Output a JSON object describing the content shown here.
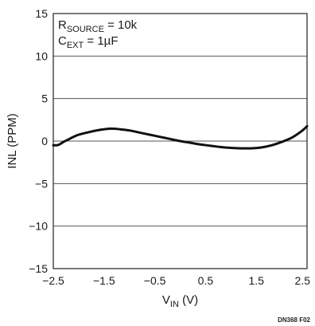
{
  "chart_data": {
    "type": "line",
    "title": "",
    "xlabel": {
      "main": "V",
      "sub": "IN",
      "unit": " (V)"
    },
    "ylabel": "INL (PPM)",
    "xlim": [
      -2.5,
      2.5
    ],
    "ylim": [
      -15,
      15
    ],
    "x_ticks": [
      -2.5,
      -1.5,
      -0.5,
      0.5,
      1.5,
      2.5
    ],
    "x_tick_labels": [
      "−2.5",
      "−1.5",
      "−0.5",
      "0.5",
      "1.5",
      "2.5"
    ],
    "y_ticks": [
      -15,
      -10,
      -5,
      0,
      5,
      10,
      15
    ],
    "y_tick_labels": [
      "−15",
      "−10",
      "−5",
      "0",
      "5",
      "10",
      "15"
    ],
    "grid": {
      "horizontal": true,
      "vertical": false
    },
    "annotations": [
      {
        "main": "R",
        "sub": "SOURCE",
        "rest": " = 10k"
      },
      {
        "main": "C",
        "sub": "EXT",
        "rest": " = 1µF"
      }
    ],
    "series": [
      {
        "x": [
          -2.5,
          -2.4,
          -2.3,
          -2.2,
          -2.1,
          -2.0,
          -1.8,
          -1.6,
          -1.4,
          -1.3,
          -1.2,
          -1.0,
          -0.8,
          -0.6,
          -0.4,
          -0.2,
          0.0,
          0.2,
          0.4,
          0.6,
          0.8,
          1.0,
          1.2,
          1.4,
          1.6,
          1.8,
          2.0,
          2.2,
          2.4,
          2.5
        ],
        "y": [
          -0.5,
          -0.45,
          -0.1,
          0.2,
          0.5,
          0.75,
          1.05,
          1.3,
          1.45,
          1.45,
          1.4,
          1.25,
          1.0,
          0.75,
          0.5,
          0.25,
          0.0,
          -0.2,
          -0.4,
          -0.55,
          -0.7,
          -0.8,
          -0.85,
          -0.85,
          -0.75,
          -0.5,
          -0.1,
          0.4,
          1.2,
          1.75
        ]
      }
    ]
  },
  "figure_id": "DN368 F02",
  "colors": {
    "grid": "#555555",
    "axis": "#222222",
    "line": "#111111"
  }
}
